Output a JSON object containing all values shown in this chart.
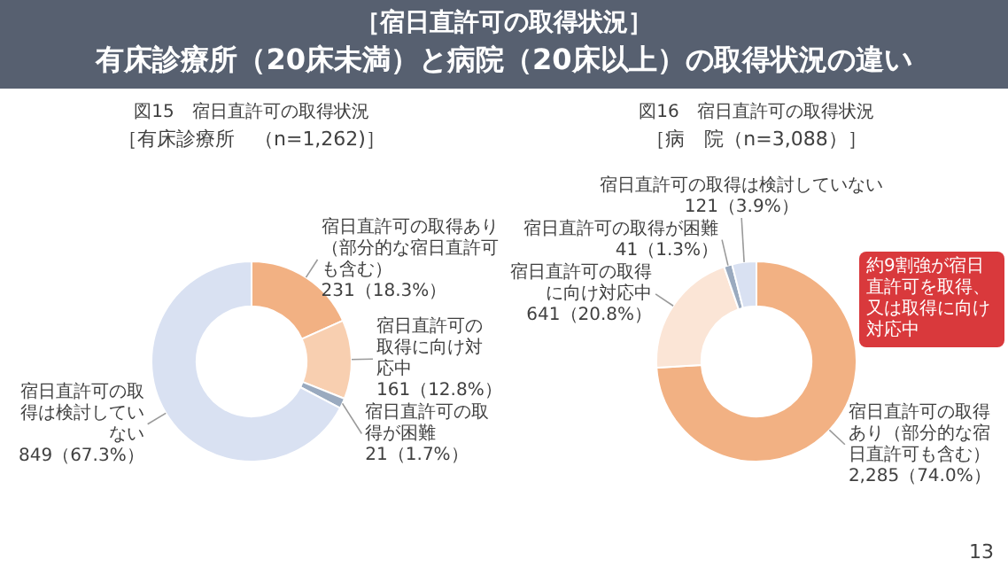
{
  "chart_data": [
    {
      "type": "donut",
      "title": "図15　宿日直許可の取得状況",
      "subtitle": "［有床診療所　（n=1,262)］",
      "annotations": [
        "［宿日直許可の取得状況］",
        "有床診療所（20床未満）と病院（20床以上）の取得状況の違い"
      ],
      "categories": [
        "宿日直許可の取得あり（部分的な宿日直許可も含む）",
        "宿日直許可の取得に向け対応中",
        "宿日直許可の取得が困難",
        "宿日直許可の取得は検討していない"
      ],
      "values": [
        231,
        161,
        21,
        849
      ],
      "value_labels": [
        "231（18.3%）",
        "161（12.8%）",
        "21（1.7%）",
        "849（67.3%）"
      ],
      "colors": [
        "#f2b183",
        "#f8cfb0",
        "#9aaabf",
        "#d9e1f2"
      ],
      "legend": false
    },
    {
      "type": "donut",
      "title": "図16　宿日直許可の取得状況",
      "subtitle": "［病　院（n=3,088）］",
      "annotations": [
        "約9割強が宿日直許可を取得、又は取得に向け対応中",
        "13"
      ],
      "categories": [
        "宿日直許可の取得あり（部分的な宿日直許可も含む）",
        "宿日直許可の取得に向け対応中",
        "宿日直許可の取得が困難",
        "宿日直許可の取得は検討していない"
      ],
      "values": [
        2285,
        641,
        41,
        121
      ],
      "value_labels": [
        "2,285（74.0%）",
        "641（20.8%）",
        "41（1.3%）",
        "121（3.9%）"
      ],
      "colors": [
        "#f2b183",
        "#fbe5d6",
        "#9aaabf",
        "#d9e1f2"
      ],
      "legend": false
    }
  ]
}
